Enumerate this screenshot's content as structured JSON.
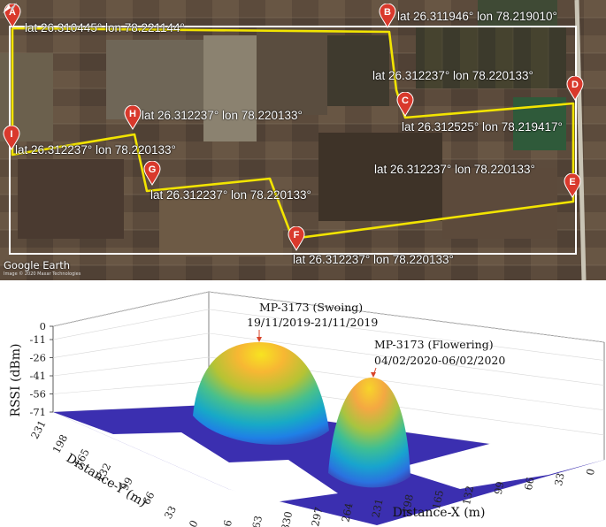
{
  "map": {
    "attribution": "Google Earth",
    "imagery_credit": "Image © 2020 Maxar Technologies",
    "waypoints": [
      {
        "id": "A",
        "lat": "26.310445°",
        "lon": "78.221144°"
      },
      {
        "id": "B",
        "lat": "26.311946°",
        "lon": "78.219010°"
      },
      {
        "id": "C",
        "lat": "26.312525°",
        "lon": "78.219417°"
      },
      {
        "id": "D",
        "lat": "26.312237°",
        "lon": "78.220133°"
      },
      {
        "id": "E",
        "lat": "26.312237°",
        "lon": "78.220133°"
      },
      {
        "id": "F",
        "lat": "26.312237°",
        "lon": "78.220133°"
      },
      {
        "id": "G",
        "lat": "26.312237°",
        "lon": "78.220133°"
      },
      {
        "id": "H",
        "lat": "26.312237°",
        "lon": "78.220133°"
      },
      {
        "id": "I",
        "lat": "26.312237°",
        "lon": "78.220133°"
      }
    ],
    "labels": {
      "A": "lat 26.310445°   lon 78.221144°",
      "B": "lat  26.311946°  lon  78.219010°",
      "D": "lat 26.312237°  lon 78.220133°",
      "C": "lat 26.312525°   lon 78.219417°",
      "H": "lat 26.312237°  lon 78.220133°",
      "I": "lat 26.312237°   lon 78.220133°",
      "G": "lat 26.312237°  lon 78.220133°",
      "E": "lat 26.312237°  lon 78.220133°",
      "F": "lat 26.312237° lon 78.220133°"
    },
    "colors": {
      "route": "#f2e400",
      "boundary": "#ffffff",
      "pin": "#d9392c"
    }
  },
  "chart_data": {
    "type": "surface3d",
    "zlabel": "RSSI (dBm)",
    "xlabel": "Distance-X (m)",
    "ylabel": "Distance-Y (m)",
    "z_ticks": [
      "0",
      "-11",
      "-26",
      "-41",
      "-56",
      "-71"
    ],
    "x_ticks": [
      "396",
      "363",
      "330",
      "297",
      "264",
      "231",
      "198",
      "165",
      "132",
      "99",
      "66",
      "33",
      "0"
    ],
    "y_ticks": [
      "231",
      "198",
      "165",
      "132",
      "99",
      "66",
      "33",
      "0"
    ],
    "zlim": [
      -71,
      0
    ],
    "floor_value": -71,
    "colormap": "parula",
    "peaks": [
      {
        "name": "MP-3173 (Swoing)",
        "date_range": "19/11/2019-21/11/2019",
        "peak_rssi": -11
      },
      {
        "name": "MP-3173 (Flowering)",
        "date_range": "04/02/2020-06/02/2020",
        "peak_rssi": -26
      }
    ]
  }
}
